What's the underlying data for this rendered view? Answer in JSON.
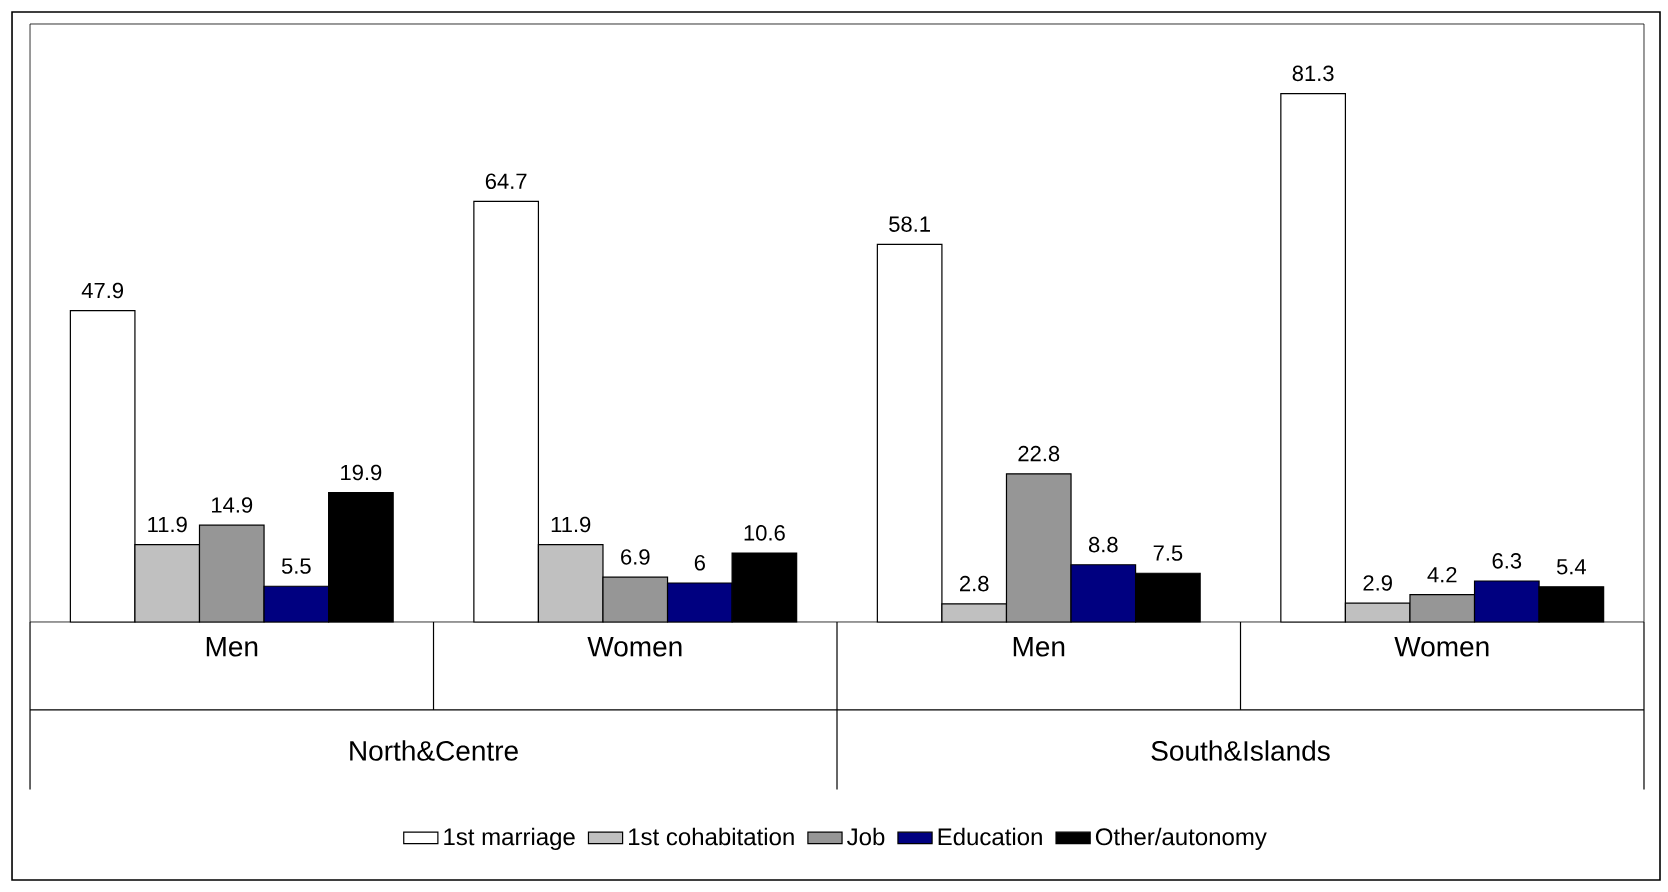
{
  "chart_data": {
    "type": "bar",
    "categories": [
      "Men",
      "Women",
      "Men",
      "Women"
    ],
    "annotations": [
      "North&Centre",
      "South&Islands"
    ],
    "series": [
      {
        "name": "1st marriage",
        "color": "#ffffff",
        "values": [
          47.9,
          64.7,
          58.1,
          81.3
        ]
      },
      {
        "name": "1st cohabitation",
        "color": "#c0c0c0",
        "values": [
          11.9,
          11.9,
          2.8,
          2.9
        ]
      },
      {
        "name": "Job",
        "color": "#969696",
        "values": [
          14.9,
          6.9,
          22.8,
          4.2
        ]
      },
      {
        "name": "Education",
        "color": "#000080",
        "values": [
          5.5,
          6,
          8.8,
          6.3
        ]
      },
      {
        "name": "Other/autonomy",
        "color": "#000000",
        "values": [
          19.9,
          10.6,
          7.5,
          5.4
        ]
      }
    ],
    "ylim": [
      0,
      92
    ],
    "data_labels": true,
    "legend": "bottom",
    "grid": false
  }
}
